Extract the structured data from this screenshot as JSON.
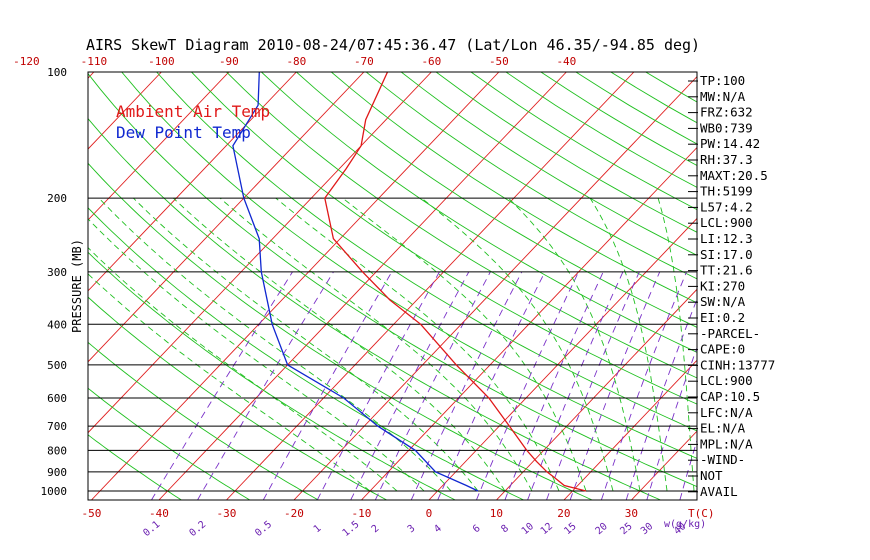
{
  "title": "AIRS SkewT Diagram 2010-08-24/07:45:36.47 (Lat/Lon 46.35/-94.85 deg)",
  "y_axis_label": "PRESSURE (MB)",
  "legend": {
    "ambient": "Ambient Air Temp",
    "dewpoint": "Dew Point Temp"
  },
  "unit_labels": {
    "temperature": "T(C)",
    "mixing_ratio": "w(g/kg)"
  },
  "colors": {
    "ambient": "#e01818",
    "dewpoint": "#1028d0",
    "isotherm": "#e02020",
    "dry_adiabat": "#20c020",
    "moist_adiabat": "#20c020",
    "mixing_ratio": "#7a30c8",
    "isobar": "#000000"
  },
  "indices": [
    "TP:100",
    "MW:N/A",
    "FRZ:632",
    "WB0:739",
    "PW:14.42",
    "RH:37.3",
    "MAXT:20.5",
    "TH:5199",
    "L57:4.2",
    "LCL:900",
    "LI:12.3",
    "SI:17.0",
    "TT:21.6",
    "KI:270",
    "SW:N/A",
    "EI:0.2",
    "-PARCEL-",
    "CAPE:0",
    "CINH:13777",
    "LCL:900",
    "CAP:10.5",
    "LFC:N/A",
    "EL:N/A",
    "MPL:N/A",
    "-WIND-",
    "NOT",
    "AVAIL"
  ],
  "chart_data": {
    "type": "line",
    "title": "AIRS SkewT Diagram 2010-08-24/07:45:36.47 (Lat/Lon 46.35/-94.85 deg)",
    "ylabel": "PRESSURE (MB)",
    "xlabel": "T(C)",
    "y_scale": "log",
    "y_direction": "decreasing_upward",
    "ylim": [
      1050,
      100
    ],
    "pressure_ticks": [
      "100",
      "200",
      "300",
      "400",
      "500",
      "600",
      "700",
      "800",
      "900",
      "1000"
    ],
    "pressure_levels": [
      100,
      200,
      300,
      400,
      500,
      600,
      700,
      800,
      900,
      1000
    ],
    "top_temperature_ticks": [
      "-120",
      "-110",
      "-100",
      "-90",
      "-80",
      "-70",
      "-60",
      "-50",
      "-40"
    ],
    "top_temperature_values": [
      -120,
      -110,
      -100,
      -90,
      -80,
      -70,
      -60,
      -50,
      -40
    ],
    "bottom_temperature_ticks": [
      "-50",
      "-40",
      "-30",
      "-20",
      "-10",
      "0",
      "10",
      "20",
      "30"
    ],
    "bottom_temperature_values": [
      -50,
      -40,
      -30,
      -20,
      -10,
      0,
      10,
      20,
      30
    ],
    "mixing_ratio_ticks": [
      "0.1",
      "0.2",
      "0.5",
      "1",
      "1.5",
      "2",
      "3",
      "4",
      "6",
      "8",
      "10",
      "12",
      "15",
      "20",
      "25",
      "30",
      "40"
    ],
    "mixing_ratio_values": [
      0.1,
      0.2,
      0.5,
      1,
      1.5,
      2,
      3,
      4,
      6,
      8,
      10,
      12,
      15,
      20,
      25,
      30,
      40
    ],
    "series": [
      {
        "name": "Ambient Air Temp",
        "points": [
          {
            "p": 1000,
            "t": 22
          },
          {
            "p": 970,
            "t": 18
          },
          {
            "p": 930,
            "t": 15.5
          },
          {
            "p": 900,
            "t": 13.5
          },
          {
            "p": 850,
            "t": 10.5
          },
          {
            "p": 800,
            "t": 7.5
          },
          {
            "p": 700,
            "t": 1.5
          },
          {
            "p": 600,
            "t": -5.5
          },
          {
            "p": 500,
            "t": -15
          },
          {
            "p": 400,
            "t": -26
          },
          {
            "p": 350,
            "t": -34
          },
          {
            "p": 300,
            "t": -42
          },
          {
            "p": 250,
            "t": -51
          },
          {
            "p": 200,
            "t": -58
          },
          {
            "p": 170,
            "t": -59
          },
          {
            "p": 150,
            "t": -60
          },
          {
            "p": 130,
            "t": -63
          },
          {
            "p": 100,
            "t": -66.5
          }
        ]
      },
      {
        "name": "Dew Point Temp",
        "points": [
          {
            "p": 1000,
            "t": 6
          },
          {
            "p": 970,
            "t": 3.5
          },
          {
            "p": 900,
            "t": -3
          },
          {
            "p": 800,
            "t": -9
          },
          {
            "p": 700,
            "t": -18
          },
          {
            "p": 600,
            "t": -27
          },
          {
            "p": 500,
            "t": -40
          },
          {
            "p": 400,
            "t": -48
          },
          {
            "p": 300,
            "t": -57
          },
          {
            "p": 250,
            "t": -62
          },
          {
            "p": 200,
            "t": -70
          },
          {
            "p": 150,
            "t": -79
          },
          {
            "p": 120,
            "t": -81
          },
          {
            "p": 100,
            "t": -85.5
          }
        ]
      }
    ]
  }
}
